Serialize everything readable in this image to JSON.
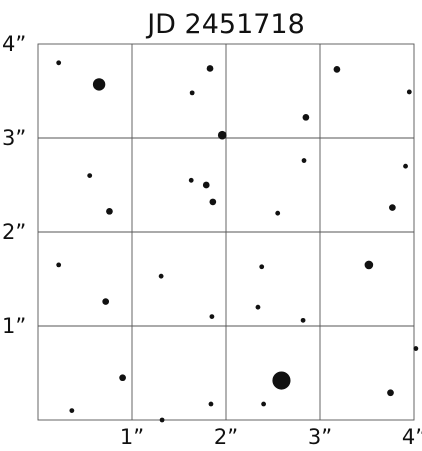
{
  "chart_data": {
    "type": "scatter",
    "title": "JD 2451718",
    "xlabel": "",
    "ylabel": "",
    "xlim": [
      0,
      4
    ],
    "ylim": [
      0,
      4
    ],
    "grid": true,
    "x_ticks": [
      {
        "value": 1,
        "label": "1”"
      },
      {
        "value": 2,
        "label": "2”"
      },
      {
        "value": 3,
        "label": "3”"
      },
      {
        "value": 4,
        "label": "4”"
      }
    ],
    "y_ticks": [
      {
        "value": 1,
        "label": "1”"
      },
      {
        "value": 2,
        "label": "2”"
      },
      {
        "value": 3,
        "label": "3”"
      },
      {
        "value": 4,
        "label": "4”"
      }
    ],
    "color": "#111111",
    "note_size": "brightness",
    "points": [
      {
        "x": 0.22,
        "y": 3.8,
        "s": 2
      },
      {
        "x": 0.65,
        "y": 3.57,
        "s": 6
      },
      {
        "x": 1.83,
        "y": 3.74,
        "s": 3
      },
      {
        "x": 1.64,
        "y": 3.48,
        "s": 2
      },
      {
        "x": 3.18,
        "y": 3.73,
        "s": 3
      },
      {
        "x": 3.95,
        "y": 3.49,
        "s": 2
      },
      {
        "x": 2.85,
        "y": 3.22,
        "s": 3
      },
      {
        "x": 1.96,
        "y": 3.03,
        "s": 4
      },
      {
        "x": 0.55,
        "y": 2.6,
        "s": 2
      },
      {
        "x": 1.63,
        "y": 2.55,
        "s": 2
      },
      {
        "x": 1.79,
        "y": 2.5,
        "s": 3
      },
      {
        "x": 1.86,
        "y": 2.32,
        "s": 3
      },
      {
        "x": 0.76,
        "y": 2.22,
        "s": 3
      },
      {
        "x": 2.83,
        "y": 2.76,
        "s": 2
      },
      {
        "x": 2.55,
        "y": 2.2,
        "s": 2
      },
      {
        "x": 3.91,
        "y": 2.7,
        "s": 2
      },
      {
        "x": 3.77,
        "y": 2.26,
        "s": 3
      },
      {
        "x": 0.22,
        "y": 1.65,
        "s": 2
      },
      {
        "x": 1.31,
        "y": 1.53,
        "s": 2
      },
      {
        "x": 0.72,
        "y": 1.26,
        "s": 3
      },
      {
        "x": 1.85,
        "y": 1.1,
        "s": 2
      },
      {
        "x": 2.38,
        "y": 1.63,
        "s": 2
      },
      {
        "x": 2.34,
        "y": 1.2,
        "s": 2
      },
      {
        "x": 2.82,
        "y": 1.06,
        "s": 2
      },
      {
        "x": 3.52,
        "y": 1.65,
        "s": 4
      },
      {
        "x": 4.02,
        "y": 0.76,
        "s": 2
      },
      {
        "x": 0.9,
        "y": 0.45,
        "s": 3
      },
      {
        "x": 0.36,
        "y": 0.1,
        "s": 2
      },
      {
        "x": 1.32,
        "y": 0.0,
        "s": 2
      },
      {
        "x": 1.84,
        "y": 0.17,
        "s": 2
      },
      {
        "x": 2.4,
        "y": 0.17,
        "s": 2
      },
      {
        "x": 2.59,
        "y": 0.42,
        "s": 9
      },
      {
        "x": 3.75,
        "y": 0.29,
        "s": 3
      }
    ]
  }
}
